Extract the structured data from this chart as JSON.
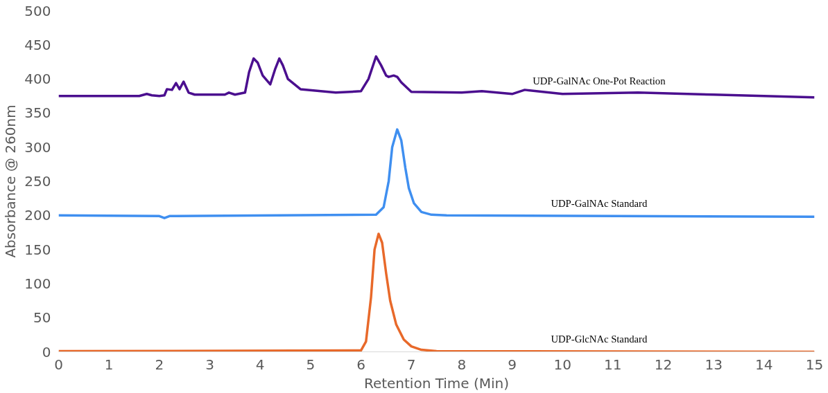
{
  "chart_data": {
    "type": "line",
    "xlabel": "Retention Time (Min)",
    "ylabel": "Absorbance @ 260nm",
    "xlim": [
      0,
      15
    ],
    "ylim": [
      0,
      500
    ],
    "xticks": [
      0,
      1,
      2,
      3,
      4,
      5,
      6,
      7,
      8,
      9,
      10,
      11,
      12,
      13,
      14,
      15
    ],
    "yticks": [
      0,
      50,
      100,
      150,
      200,
      250,
      300,
      350,
      400,
      450,
      500
    ],
    "grid": false,
    "marker": "none",
    "line_style": "solid",
    "series": [
      {
        "name": "UDP-GalNAc One-Pot Reaction",
        "color": "#4b0f8f",
        "x": [
          0,
          1.6,
          1.75,
          1.85,
          2.0,
          2.1,
          2.15,
          2.25,
          2.33,
          2.4,
          2.48,
          2.58,
          2.7,
          3.3,
          3.38,
          3.5,
          3.7,
          3.78,
          3.87,
          3.95,
          4.05,
          4.2,
          4.3,
          4.38,
          4.45,
          4.55,
          4.8,
          5.5,
          6.0,
          6.15,
          6.3,
          6.4,
          6.5,
          6.55,
          6.65,
          6.72,
          6.8,
          7.0,
          8.0,
          8.4,
          9.0,
          9.25,
          10.0,
          11.5,
          13,
          15
        ],
        "values": [
          375,
          375,
          378,
          376,
          375,
          376,
          385,
          384,
          394,
          385,
          396,
          380,
          377,
          377,
          380,
          377,
          380,
          410,
          430,
          424,
          405,
          392,
          415,
          430,
          420,
          400,
          385,
          380,
          382,
          400,
          433,
          420,
          405,
          403,
          405,
          403,
          395,
          381,
          380,
          382,
          378,
          384,
          378,
          380,
          377,
          373
        ]
      },
      {
        "name": "UDP-GalNAc Standard",
        "color": "#3f8ff0",
        "x": [
          0,
          2.0,
          2.1,
          2.2,
          6.3,
          6.45,
          6.55,
          6.62,
          6.72,
          6.8,
          6.88,
          6.95,
          7.05,
          7.2,
          7.4,
          7.7,
          15
        ],
        "values": [
          200,
          199,
          196,
          199,
          201,
          212,
          250,
          300,
          326,
          310,
          270,
          240,
          218,
          205,
          201,
          200,
          198
        ]
      },
      {
        "name": "UDP-GlcNAc Standard",
        "color": "#e8692a",
        "x": [
          0,
          6.0,
          6.1,
          6.2,
          6.27,
          6.35,
          6.42,
          6.5,
          6.58,
          6.7,
          6.85,
          7.0,
          7.2,
          7.5,
          15
        ],
        "values": [
          1,
          2,
          15,
          80,
          150,
          173,
          160,
          115,
          75,
          40,
          18,
          8,
          3,
          1,
          0
        ]
      }
    ]
  }
}
